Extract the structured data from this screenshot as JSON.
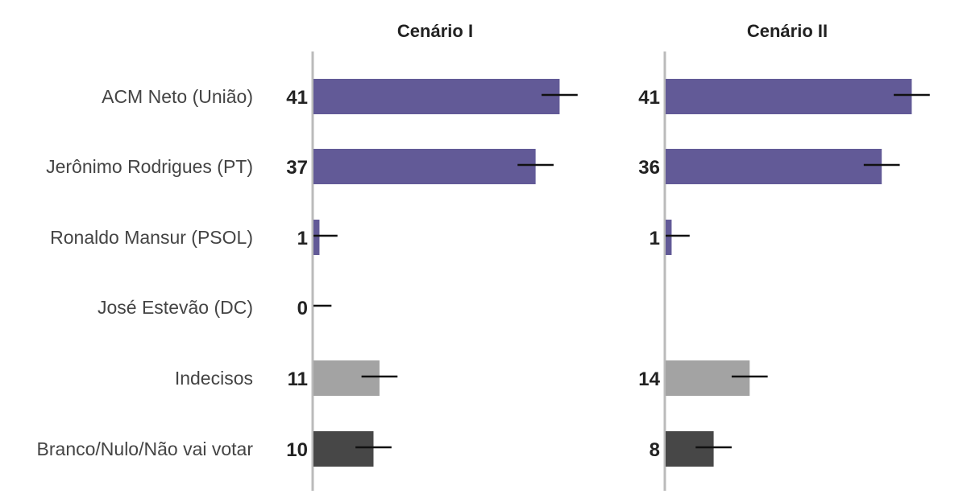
{
  "chart_data": {
    "type": "bar",
    "orientation": "horizontal",
    "categories": [
      "ACM Neto (União)",
      "Jerônimo Rodrigues (PT)",
      "Ronaldo Mansur (PSOL)",
      "José Estevão (DC)",
      "Indecisos",
      "Branco/Nulo/Não vai votar"
    ],
    "xlim": [
      0,
      50
    ],
    "grid": false,
    "colors": {
      "candidate": "#625a97",
      "undecided": "#a3a3a3",
      "blank_null": "#474747",
      "error_bar": "#111111",
      "axis": "#bbbbbb"
    },
    "bar_colors": [
      "candidate",
      "candidate",
      "candidate",
      "candidate",
      "undecided",
      "blank_null"
    ],
    "panels": [
      {
        "title": "Cenário I",
        "values": [
          41,
          37,
          1,
          0,
          11,
          10
        ],
        "value_labels": [
          "41",
          "37",
          "1",
          "0",
          "11",
          "10"
        ],
        "error_margin": 3
      },
      {
        "title": "Cenário II",
        "values": [
          41,
          36,
          1,
          null,
          14,
          8
        ],
        "value_labels": [
          "41",
          "36",
          "1",
          "",
          "14",
          "8"
        ],
        "error_margin": 3
      }
    ]
  }
}
